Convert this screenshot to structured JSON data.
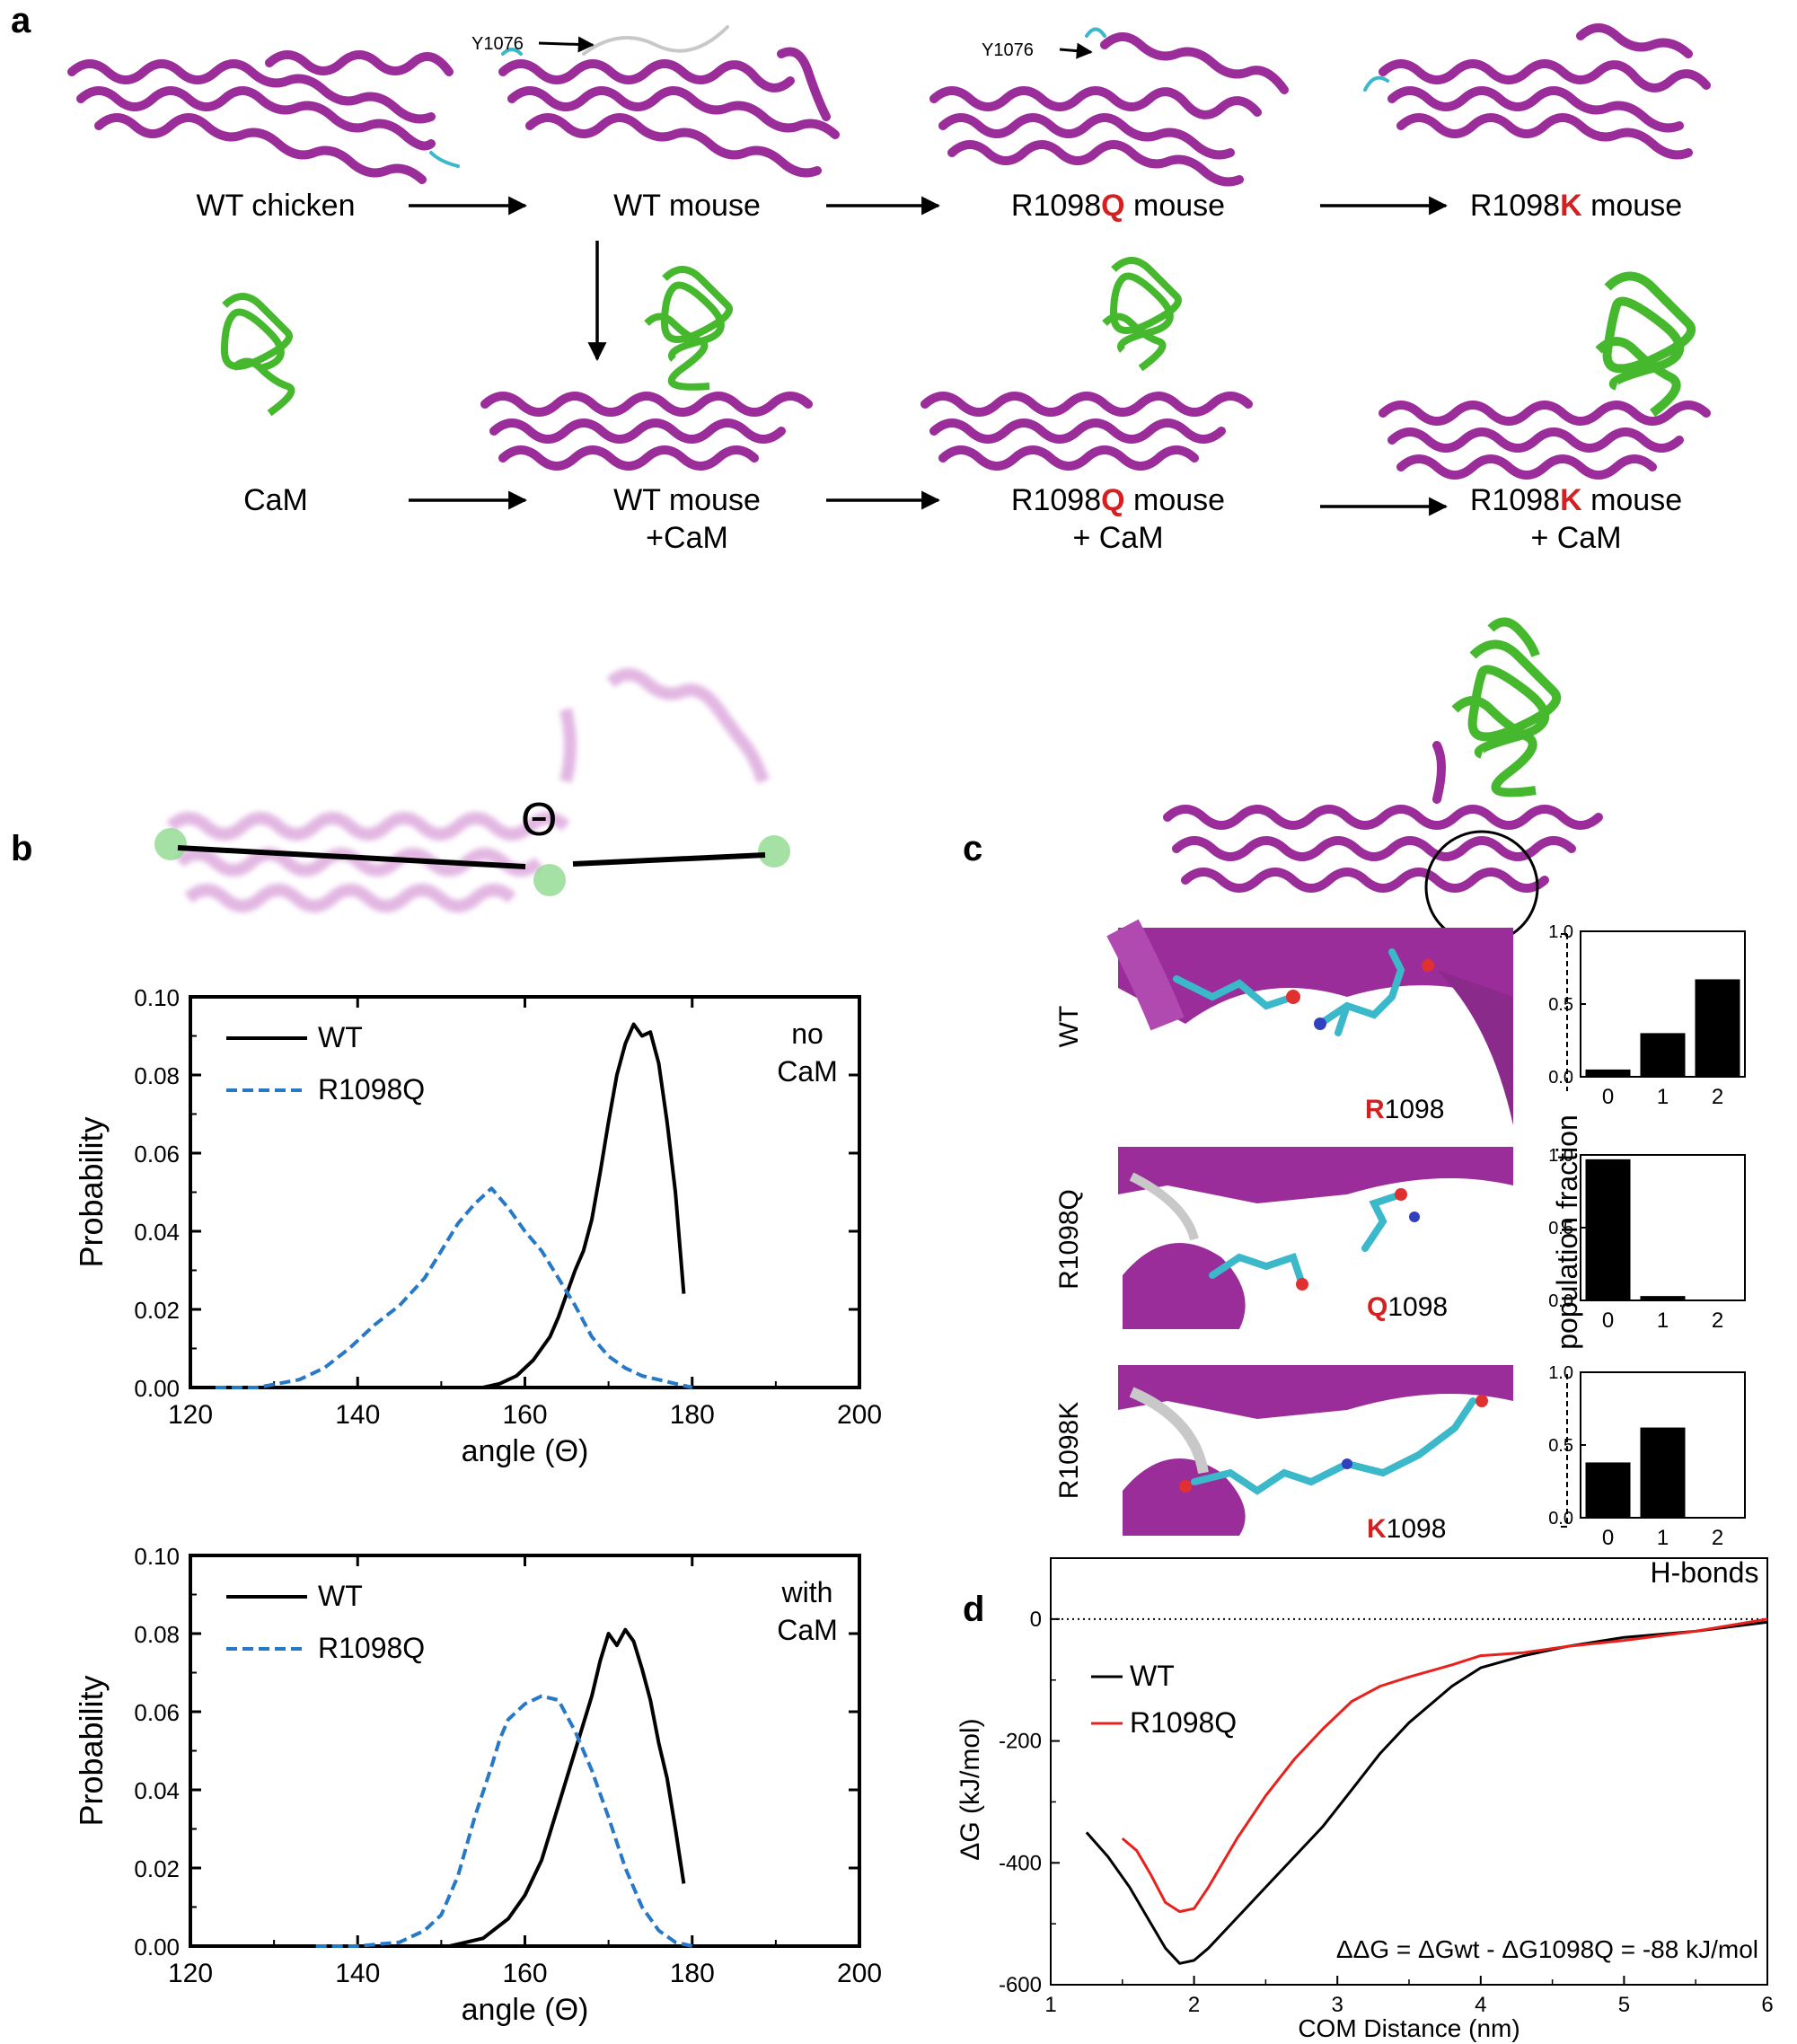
{
  "panel_a": {
    "label": "a",
    "annotations": {
      "y1076": "Y1076"
    },
    "row1": {
      "wt_chicken": "WT chicken",
      "wt_mouse": "WT mouse",
      "q_pre": "R1098",
      "q_mut": "Q",
      "q_post": " mouse",
      "k_pre": "R1098",
      "k_mut": "K",
      "k_post": " mouse"
    },
    "row2": {
      "cam": "CaM",
      "wt_mouse": "WT mouse",
      "wt_cam": "+CaM",
      "q_pre": "R1098",
      "q_mut": "Q",
      "q_post": " mouse",
      "q_cam": "+ CaM",
      "k_pre": "R1098",
      "k_mut": "K",
      "k_post": " mouse",
      "k_cam": "+ CaM"
    }
  },
  "panel_b": {
    "label": "b",
    "theta_symbol": "Θ"
  },
  "panel_c": {
    "label": "c",
    "rows": [
      {
        "side": "WT",
        "res_letter": "R",
        "res_num": "1098"
      },
      {
        "side": "R1098Q",
        "res_letter": "Q",
        "res_num": "1098"
      },
      {
        "side": "R1098K",
        "res_letter": "K",
        "res_num": "1098"
      }
    ],
    "ylabel": "population fraction",
    "xlabel": "H-bonds"
  },
  "panel_d": {
    "label": "d"
  },
  "colors": {
    "helix": "#9B2D9B",
    "cam": "#46B82E",
    "wt_line": "#000000",
    "mut_line": "#2878C8",
    "mut_red": "#E8211C",
    "mutation_label": "#D42020"
  },
  "chart_data": [
    {
      "id": "b-top",
      "type": "line",
      "xlabel": "angle (Θ)",
      "ylabel": "Probability",
      "annotation": [
        "no",
        "CaM"
      ],
      "xlim": [
        120,
        200
      ],
      "ylim": [
        0,
        0.1
      ],
      "xticks": [
        120,
        140,
        160,
        180,
        200
      ],
      "yticks": [
        0.0,
        0.02,
        0.04,
        0.06,
        0.08,
        0.1
      ],
      "ytick_labels": [
        "0.00",
        "0.02",
        "0.04",
        "0.06",
        "0.08",
        "0.10"
      ],
      "legend": "top-left",
      "series": [
        {
          "name": "WT",
          "style": "solid",
          "color": "#000000",
          "x": [
            155,
            157,
            159,
            161,
            163,
            164,
            165,
            166,
            167,
            168,
            169,
            170,
            171,
            172,
            173,
            174,
            175,
            176,
            177,
            178,
            179
          ],
          "y": [
            0.0,
            0.001,
            0.003,
            0.007,
            0.013,
            0.018,
            0.024,
            0.03,
            0.035,
            0.043,
            0.055,
            0.068,
            0.08,
            0.088,
            0.093,
            0.09,
            0.091,
            0.083,
            0.068,
            0.05,
            0.024
          ]
        },
        {
          "name": "R1098Q",
          "style": "dashed",
          "color": "#2878C8",
          "x": [
            123,
            128,
            133,
            136,
            139,
            142,
            145,
            148,
            150,
            152,
            154,
            156,
            158,
            160,
            162,
            164,
            166,
            168,
            170,
            172,
            174,
            176,
            178,
            180
          ],
          "y": [
            0.0,
            0.0,
            0.002,
            0.005,
            0.01,
            0.016,
            0.021,
            0.028,
            0.035,
            0.042,
            0.047,
            0.051,
            0.046,
            0.04,
            0.035,
            0.028,
            0.021,
            0.013,
            0.008,
            0.005,
            0.003,
            0.002,
            0.001,
            0.0
          ]
        }
      ]
    },
    {
      "id": "b-bottom",
      "type": "line",
      "xlabel": "angle (Θ)",
      "ylabel": "Probability",
      "annotation": [
        "with",
        "CaM"
      ],
      "xlim": [
        120,
        200
      ],
      "ylim": [
        0,
        0.1
      ],
      "xticks": [
        120,
        140,
        160,
        180,
        200
      ],
      "yticks": [
        0.0,
        0.02,
        0.04,
        0.06,
        0.08,
        0.1
      ],
      "ytick_labels": [
        "0.00",
        "0.02",
        "0.04",
        "0.06",
        "0.08",
        "0.10"
      ],
      "legend": "top-left",
      "series": [
        {
          "name": "WT",
          "style": "solid",
          "color": "#000000",
          "x": [
            151,
            155,
            158,
            160,
            162,
            164,
            166,
            168,
            169,
            170,
            171,
            172,
            173,
            174,
            175,
            176,
            177,
            178,
            179
          ],
          "y": [
            0.0,
            0.002,
            0.007,
            0.013,
            0.022,
            0.036,
            0.05,
            0.064,
            0.073,
            0.08,
            0.077,
            0.081,
            0.078,
            0.071,
            0.063,
            0.052,
            0.043,
            0.03,
            0.016
          ]
        },
        {
          "name": "R1098Q",
          "style": "dashed",
          "color": "#2878C8",
          "x": [
            135,
            140,
            145,
            148,
            150,
            152,
            154,
            156,
            157,
            158,
            160,
            162,
            164,
            166,
            168,
            170,
            172,
            174,
            176,
            178,
            180
          ],
          "y": [
            0.0,
            0.0,
            0.001,
            0.004,
            0.008,
            0.018,
            0.033,
            0.046,
            0.053,
            0.058,
            0.062,
            0.064,
            0.063,
            0.055,
            0.045,
            0.033,
            0.02,
            0.01,
            0.004,
            0.001,
            0.0
          ]
        }
      ]
    },
    {
      "id": "c-wt",
      "type": "bar",
      "categories": [
        "0",
        "1",
        "2"
      ],
      "values": [
        0.05,
        0.3,
        0.67
      ],
      "ylim": [
        0,
        1
      ],
      "yticks": [
        0.0,
        0.5,
        1.0
      ],
      "ytick_labels": [
        "0.0",
        "0.5",
        "1.0"
      ]
    },
    {
      "id": "c-q",
      "type": "bar",
      "categories": [
        "0",
        "1",
        "2"
      ],
      "values": [
        0.97,
        0.03,
        0.0
      ],
      "ylim": [
        0,
        1
      ],
      "yticks": [
        0.0,
        0.5,
        1.0
      ],
      "ytick_labels": [
        "0.0",
        "0.5",
        "1.0"
      ]
    },
    {
      "id": "c-k",
      "type": "bar",
      "categories": [
        "0",
        "1",
        "2"
      ],
      "values": [
        0.38,
        0.62,
        0.0
      ],
      "ylim": [
        0,
        1
      ],
      "yticks": [
        0.0,
        0.5,
        1.0
      ],
      "ytick_labels": [
        "0.0",
        "0.5",
        "1.0"
      ]
    },
    {
      "id": "d",
      "type": "line",
      "xlabel": "COM Distance (nm)",
      "ylabel": "ΔG (kJ/mol)",
      "xlim": [
        1,
        6
      ],
      "ylim": [
        -600,
        100
      ],
      "xticks": [
        1,
        2,
        3,
        4,
        5,
        6
      ],
      "yticks": [
        0,
        -200,
        -400,
        -600
      ],
      "legend": "left",
      "annotation": "ΔΔG = ΔGwt - ΔG1098Q = -88 kJ/mol",
      "series": [
        {
          "name": "WT",
          "color": "#000000",
          "x": [
            1.25,
            1.4,
            1.55,
            1.7,
            1.8,
            1.9,
            2.0,
            2.1,
            2.3,
            2.5,
            2.7,
            2.9,
            3.1,
            3.3,
            3.5,
            3.8,
            4.0,
            4.3,
            4.6,
            5.0,
            5.5,
            6.0
          ],
          "y": [
            -350,
            -390,
            -440,
            -500,
            -540,
            -565,
            -560,
            -540,
            -490,
            -440,
            -390,
            -340,
            -280,
            -220,
            -170,
            -110,
            -80,
            -60,
            -45,
            -30,
            -20,
            -5
          ]
        },
        {
          "name": "R1098Q",
          "color": "#E8211C",
          "x": [
            1.5,
            1.6,
            1.7,
            1.8,
            1.9,
            2.0,
            2.1,
            2.3,
            2.5,
            2.7,
            2.9,
            3.1,
            3.3,
            3.5,
            3.8,
            4.0,
            4.3,
            4.6,
            5.0,
            5.5,
            6.0
          ],
          "y": [
            -360,
            -380,
            -420,
            -465,
            -480,
            -475,
            -440,
            -360,
            -290,
            -230,
            -180,
            -135,
            -110,
            -95,
            -75,
            -60,
            -55,
            -45,
            -35,
            -20,
            0
          ]
        }
      ]
    }
  ]
}
